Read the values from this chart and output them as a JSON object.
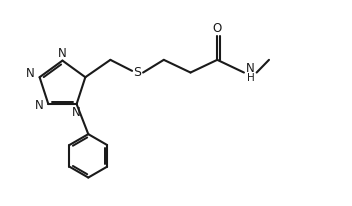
{
  "bg_color": "#ffffff",
  "line_color": "#1a1a1a",
  "line_width": 1.5,
  "font_size": 8.5,
  "figsize": [
    3.52,
    2.06
  ],
  "dpi": 100,
  "xlim": [
    0,
    10.5
  ],
  "ylim": [
    0,
    6.0
  ]
}
